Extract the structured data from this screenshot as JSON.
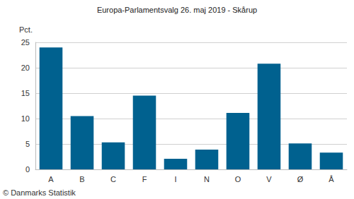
{
  "chart_data": {
    "type": "bar",
    "title": "Europa-Parlamentsvalg 26. maj 2019 - Skårup",
    "y_label": "Pct.",
    "credit": "© Danmarks Statistik",
    "categories": [
      "A",
      "B",
      "C",
      "F",
      "I",
      "N",
      "O",
      "V",
      "Ø",
      "Å"
    ],
    "values": [
      24.0,
      10.5,
      5.3,
      14.5,
      2.1,
      3.9,
      11.1,
      20.8,
      5.1,
      3.3
    ],
    "color": "#00618f",
    "ylim": [
      0,
      25
    ],
    "yticks": [
      0,
      5,
      10,
      15,
      20,
      25
    ],
    "grid": true
  }
}
